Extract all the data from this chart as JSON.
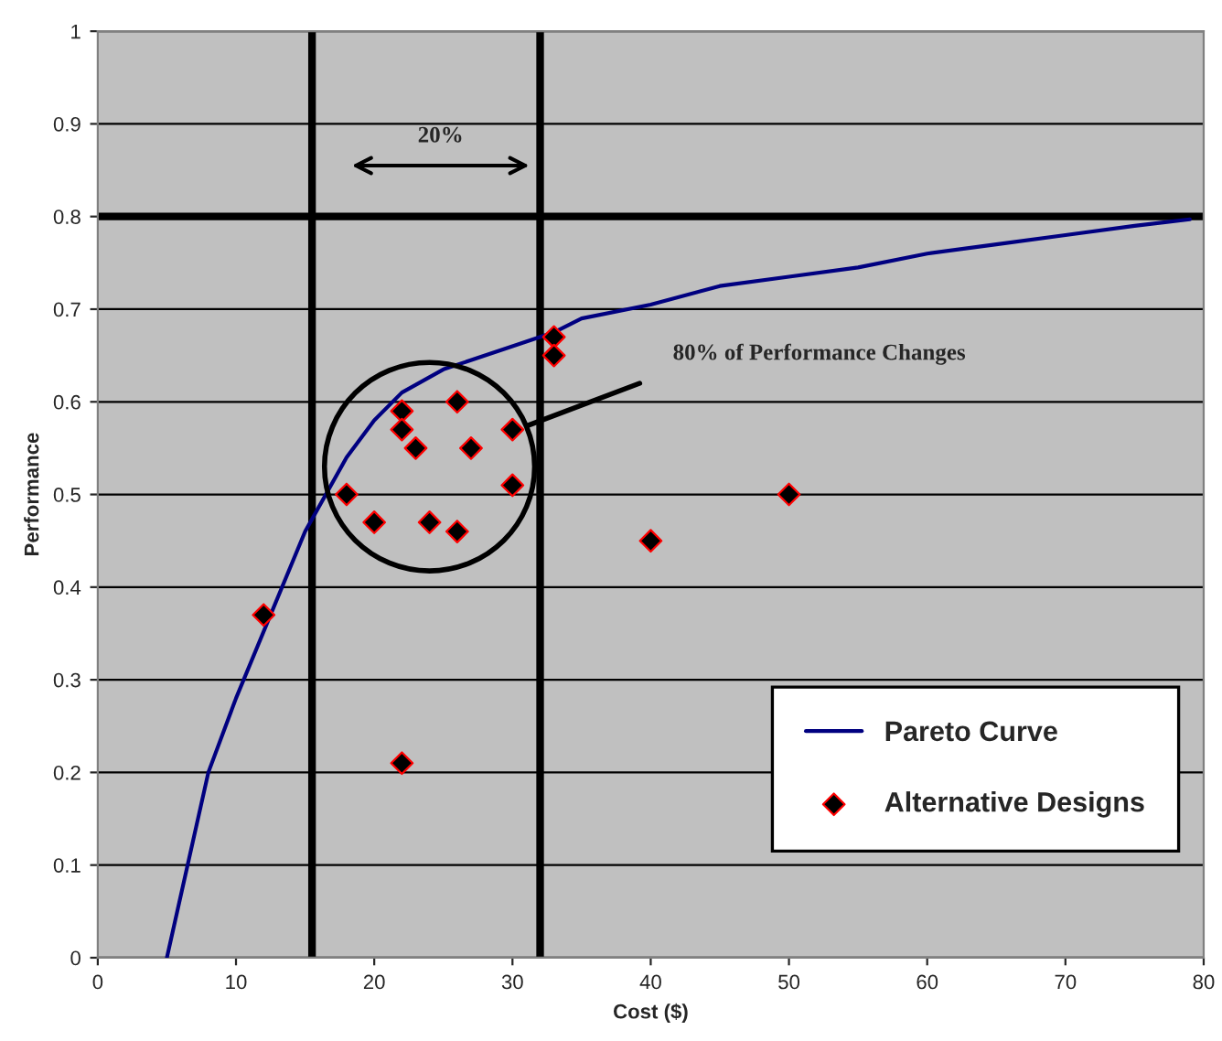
{
  "chart_data": {
    "type": "scatter",
    "xlabel": "Cost ($)",
    "ylabel": "Performance",
    "xlim": [
      0,
      80
    ],
    "xticks": [
      0,
      10,
      20,
      30,
      40,
      50,
      60,
      70,
      80
    ],
    "ylim": [
      0,
      1
    ],
    "yticks": [
      0,
      0.1,
      0.2,
      0.3,
      0.4,
      0.5,
      0.6,
      0.7,
      0.8,
      0.9,
      1
    ],
    "grid": "y",
    "legend": "bottom right",
    "series": [
      {
        "name": "Pareto Curve",
        "type": "line",
        "color": "#000080",
        "marker": "none",
        "x": [
          5,
          8,
          10,
          15,
          18,
          20,
          22,
          25,
          30,
          33,
          35,
          40,
          45,
          50,
          55,
          60,
          65,
          70,
          75,
          79
        ],
        "values": [
          0,
          0.2,
          0.28,
          0.46,
          0.54,
          0.58,
          0.61,
          0.635,
          0.66,
          0.675,
          0.69,
          0.705,
          0.725,
          0.735,
          0.745,
          0.76,
          0.77,
          0.78,
          0.79,
          0.797
        ]
      },
      {
        "name": "Alternative Designs",
        "color": "#000000",
        "marker": "diamond",
        "x": [
          12,
          18,
          20,
          22,
          22,
          23,
          24,
          26,
          26,
          27,
          30,
          30,
          33,
          33,
          22,
          40,
          50
        ],
        "values": [
          0.37,
          0.5,
          0.47,
          0.59,
          0.57,
          0.55,
          0.47,
          0.6,
          0.46,
          0.55,
          0.57,
          0.51,
          0.67,
          0.65,
          0.21,
          0.45,
          0.5
        ]
      }
    ],
    "ref_lines": [
      {
        "axis": "x",
        "value": 15.5,
        "color": "#000000"
      },
      {
        "axis": "x",
        "value": 32,
        "color": "#000000"
      },
      {
        "axis": "y",
        "value": 0.8,
        "color": "#000000"
      }
    ],
    "annotations": [
      "20%",
      "80% of Performance Changes"
    ]
  }
}
